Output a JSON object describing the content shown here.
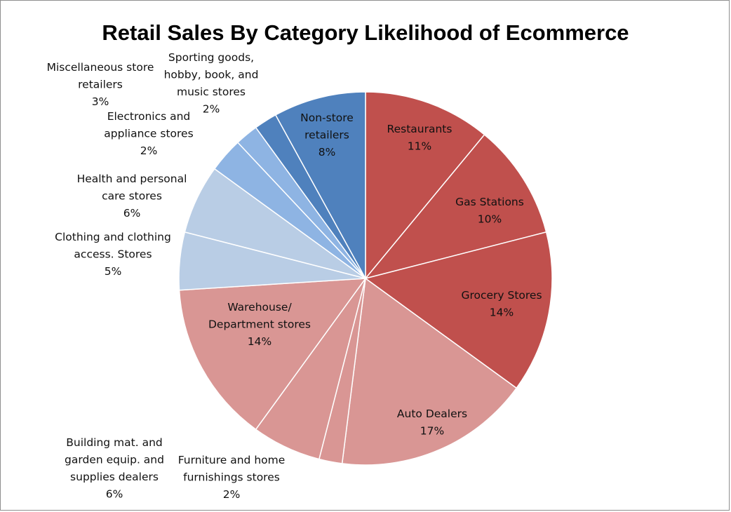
{
  "chart_data": {
    "type": "pie",
    "title": "Retail Sales By Category Likelihood of Ecommerce",
    "start": "12 o'clock",
    "direction": "clockwise",
    "legend": "none",
    "slices": [
      {
        "label_lines": [
          "Restaurants"
        ],
        "value_label": "11%",
        "value": 11,
        "color": "#c0504d"
      },
      {
        "label_lines": [
          "Gas Stations"
        ],
        "value_label": "10%",
        "value": 10,
        "color": "#c0504d"
      },
      {
        "label_lines": [
          "Grocery Stores"
        ],
        "value_label": "14%",
        "value": 14,
        "color": "#c0504d"
      },
      {
        "label_lines": [
          "Auto Dealers"
        ],
        "value_label": "17%",
        "value": 17,
        "color": "#d99694"
      },
      {
        "label_lines": [
          "Furniture and home",
          "furnishings stores"
        ],
        "value_label": "2%",
        "value": 2,
        "color": "#d99694"
      },
      {
        "label_lines": [
          "Building mat. and",
          "garden equip. and",
          "supplies dealers"
        ],
        "value_label": "6%",
        "value": 6,
        "color": "#d99694"
      },
      {
        "label_lines": [
          "Warehouse/",
          "Department stores"
        ],
        "value_label": "14%",
        "value": 14,
        "color": "#d99694"
      },
      {
        "label_lines": [
          "Clothing and clothing",
          "access. Stores"
        ],
        "value_label": "5%",
        "value": 5,
        "color": "#b9cde5"
      },
      {
        "label_lines": [
          "Health and personal",
          "care stores"
        ],
        "value_label": "6%",
        "value": 6,
        "color": "#b9cde5"
      },
      {
        "label_lines": [
          "Miscellaneous store",
          "retailers"
        ],
        "value_label": "3%",
        "value": 3,
        "color": "#8eb4e3"
      },
      {
        "label_lines": [
          "Electronics and",
          "appliance stores"
        ],
        "value_label": "2%",
        "value": 2,
        "color": "#8eb4e3"
      },
      {
        "label_lines": [
          "Sporting  goods,",
          "hobby, book, and",
          "music stores"
        ],
        "value_label": "2%",
        "value": 2,
        "color": "#4f81bd"
      },
      {
        "label_lines": [
          "Non-store",
          "retailers"
        ],
        "value_label": "8%",
        "value": 8,
        "color": "#4f81bd"
      }
    ]
  }
}
